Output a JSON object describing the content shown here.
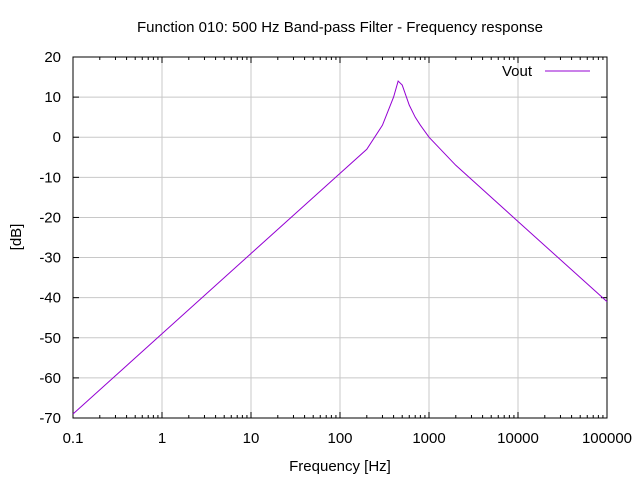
{
  "chart_data": {
    "type": "line",
    "title": "Function 010: 500 Hz Band-pass Filter - Frequency response",
    "xlabel": "Frequency [Hz]",
    "ylabel": "[dB]",
    "xscale": "log",
    "xlim": [
      0.1,
      100000
    ],
    "ylim": [
      -70,
      20
    ],
    "xticks": [
      0.1,
      1,
      10,
      100,
      1000,
      10000,
      100000
    ],
    "xtick_labels": [
      "0.1",
      "1",
      "10",
      "100",
      "1000",
      "10000",
      "100000"
    ],
    "yticks": [
      -70,
      -60,
      -50,
      -40,
      -30,
      -20,
      -10,
      0,
      10,
      20
    ],
    "ytick_labels": [
      "-70",
      "-60",
      "-50",
      "-40",
      "-30",
      "-20",
      "-10",
      "0",
      "10",
      "20"
    ],
    "grid": true,
    "legend_position": "top-right",
    "series": [
      {
        "name": "Vout",
        "color": "#9400d3",
        "x": [
          0.1,
          1,
          10,
          100,
          200,
          300,
          400,
          450,
          500,
          600,
          700,
          800,
          1000,
          2000,
          10000,
          100000
        ],
        "y": [
          -69,
          -49,
          -29,
          -9,
          -3,
          3,
          10,
          14,
          13,
          8,
          5,
          3,
          0,
          -7,
          -21,
          -41
        ]
      }
    ]
  }
}
